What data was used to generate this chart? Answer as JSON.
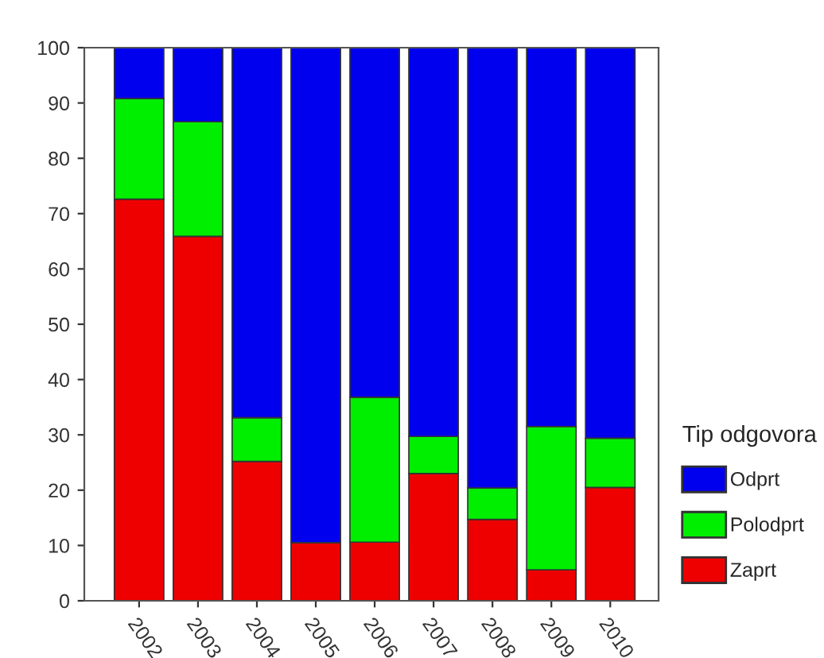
{
  "chart_data": {
    "type": "bar",
    "stacked": true,
    "categories": [
      "2002",
      "2003",
      "2004",
      "2005",
      "2006",
      "2007",
      "2008",
      "2009",
      "2010"
    ],
    "series": [
      {
        "name": "Zaprt",
        "color": "#ee0000",
        "values": [
          72.6,
          65.9,
          25.2,
          10.5,
          10.6,
          23.0,
          14.7,
          5.6,
          20.5
        ]
      },
      {
        "name": "Polodprt",
        "color": "#00ee00",
        "values": [
          18.2,
          20.7,
          7.9,
          null,
          26.2,
          6.7,
          5.7,
          25.9,
          8.9
        ]
      },
      {
        "name": "Odprt",
        "color": "#0000ee",
        "values": [
          9.2,
          13.4,
          66.9,
          89.5,
          63.2,
          70.3,
          79.6,
          68.5,
          70.6
        ]
      }
    ],
    "legend_title": "Tip odgovora",
    "legend": "right",
    "ylim": [
      0,
      100
    ],
    "yticks": [
      0,
      10,
      20,
      30,
      40,
      50,
      60,
      70,
      80,
      90,
      100
    ],
    "grid": false
  }
}
